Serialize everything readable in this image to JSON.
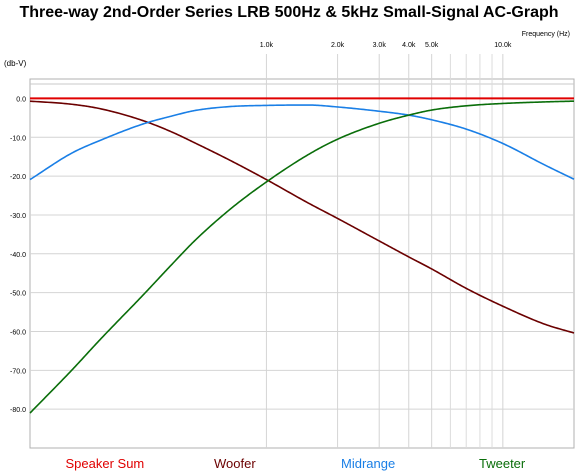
{
  "chart_data": {
    "type": "line",
    "title": "Three-way 2nd-Order Series LRB 500Hz & 5kHz Small-Signal AC-Graph",
    "xlabel": "Frequency  (Hz)",
    "ylabel": "(db-V)",
    "x_scale": "log",
    "xlim": [
      100,
      20000
    ],
    "ylim": [
      -90,
      5
    ],
    "x_ticks": [
      {
        "value": 1000,
        "label": "1.0k"
      },
      {
        "value": 2000,
        "label": "2.0k"
      },
      {
        "value": 3000,
        "label": "3.0k"
      },
      {
        "value": 4000,
        "label": "4.0k"
      },
      {
        "value": 5000,
        "label": "5.0k"
      },
      {
        "value": 10000,
        "label": "10.0k"
      }
    ],
    "x_minor_grid": [
      6000,
      7000,
      8000,
      9000
    ],
    "y_ticks": [
      {
        "value": 0,
        "label": "0.0"
      },
      {
        "value": -10,
        "label": "-10.0"
      },
      {
        "value": -20,
        "label": "-20.0"
      },
      {
        "value": -30,
        "label": "-30.0"
      },
      {
        "value": -40,
        "label": "-40.0"
      },
      {
        "value": -50,
        "label": "-50.0"
      },
      {
        "value": -60,
        "label": "-60.0"
      },
      {
        "value": -70,
        "label": "-70.0"
      },
      {
        "value": -80,
        "label": "-80.0"
      }
    ],
    "grid": true,
    "legend_position": "bottom",
    "x": [
      100,
      150,
      200,
      300,
      400,
      500,
      700,
      1000,
      1500,
      2000,
      3000,
      4000,
      5000,
      7000,
      10000,
      15000,
      20000
    ],
    "series": [
      {
        "name": "Speaker Sum",
        "color": "#e00000",
        "values": [
          0,
          0,
          0,
          0,
          0,
          0,
          0,
          0,
          0,
          0,
          0,
          0,
          0,
          0,
          0,
          0,
          0
        ]
      },
      {
        "name": "Woofer",
        "color": "#6b0000",
        "values": [
          -0.7,
          -1.5,
          -2.7,
          -5.7,
          -8.7,
          -11.5,
          -15.9,
          -20.9,
          -26.9,
          -30.9,
          -36.7,
          -40.8,
          -43.9,
          -48.9,
          -53.5,
          -58.1,
          -60.4
        ]
      },
      {
        "name": "Midrange",
        "color": "#1a7fe6",
        "values": [
          -20.9,
          -14.1,
          -10.7,
          -6.6,
          -4.5,
          -3.1,
          -2.1,
          -1.8,
          -1.7,
          -2.2,
          -3.3,
          -4.3,
          -5.5,
          -7.9,
          -11.6,
          -17.1,
          -20.8
        ]
      },
      {
        "name": "Tweeter",
        "color": "#0a6e0a",
        "values": [
          -81.0,
          -70.0,
          -61.8,
          -50.7,
          -42.6,
          -36.5,
          -28.6,
          -21.5,
          -14.5,
          -10.5,
          -6.4,
          -4.3,
          -3.0,
          -1.9,
          -1.3,
          -0.9,
          -0.7
        ]
      }
    ]
  }
}
